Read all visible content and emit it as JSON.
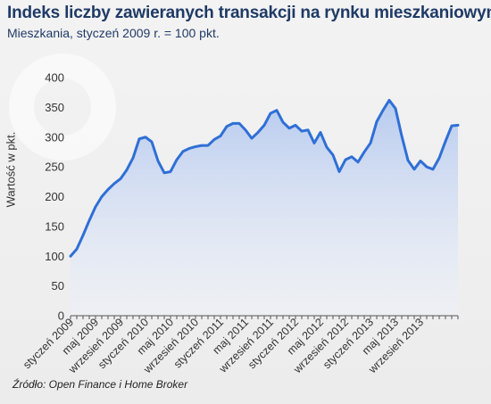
{
  "header": {
    "title": "Indeks liczby zawieranych transakcji na rynku mieszkaniowym",
    "subtitle": "Mieszkania, styczeń 2009 r. = 100 pkt."
  },
  "footer": {
    "source": "Źródło: Open Finance i Home Broker"
  },
  "colors": {
    "line": "#2f6fd6",
    "area_top": "#b9cdf0",
    "title": "#1f3a66"
  },
  "chart_data": {
    "type": "area",
    "title": "Indeks liczby zawieranych transakcji na rynku mieszkaniowym",
    "subtitle": "Mieszkania, styczeń 2009 r. = 100 pkt.",
    "ylabel": "Wartość w pkt.",
    "xlabel": "",
    "ylim": [
      0,
      400
    ],
    "yticks": [
      0,
      50,
      100,
      150,
      200,
      250,
      300,
      350,
      400
    ],
    "grid": false,
    "legend": "none",
    "x_tick_labels": [
      "styczeń 2009",
      "maj 2009",
      "wrzesień 2009",
      "styczeń 2010",
      "maj 2010",
      "wrzesień 2010",
      "styczeń 2011",
      "maj 2011",
      "wrzesień 2011",
      "styczeń 2012",
      "maj 2012",
      "wrzesień 2012",
      "styczeń 2013",
      "maj 2013",
      "wrzesień 2013"
    ],
    "tick_every_n_months": 4,
    "series": [
      {
        "values": [
          100,
          112,
          135,
          160,
          183,
          200,
          212,
          222,
          230,
          245,
          265,
          297,
          300,
          292,
          260,
          240,
          242,
          262,
          276,
          281,
          284,
          286,
          286,
          296,
          302,
          318,
          323,
          323,
          312,
          298,
          308,
          320,
          340,
          345,
          325,
          315,
          320,
          310,
          312,
          290,
          308,
          283,
          270,
          242,
          262,
          267,
          258,
          275,
          290,
          326,
          345,
          362,
          348,
          302,
          261,
          246,
          260,
          250,
          246,
          265,
          293,
          319,
          320
        ]
      }
    ]
  }
}
